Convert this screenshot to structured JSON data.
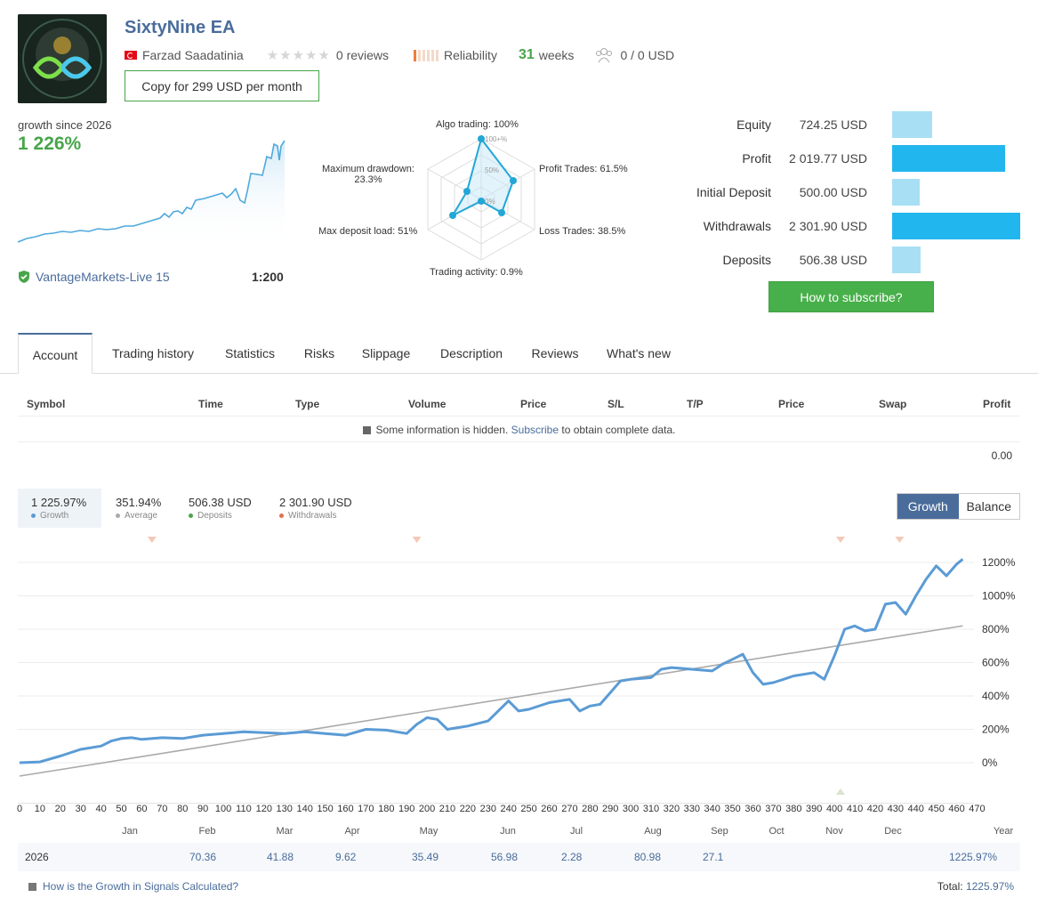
{
  "header": {
    "title": "SixtyNine EA",
    "author": "Farzad Saadatinia",
    "reviews": "0 reviews",
    "reliability_label": "Reliability",
    "weeks_value": "31",
    "weeks_label": "weeks",
    "subscribers": "0 / 0 USD",
    "copy_button": "Copy for 299 USD per month"
  },
  "growth_mini": {
    "since_label": "growth since 2026",
    "value": "1 226%",
    "broker": "VantageMarkets-Live 15",
    "leverage": "1:200"
  },
  "radar": {
    "algo_trading": "Algo trading: 100%",
    "profit_trades": "Profit Trades: 61.5%",
    "loss_trades": "Loss Trades: 38.5%",
    "trading_activity": "Trading activity: 0.9%",
    "max_deposit_load": "Max deposit load: 51%",
    "max_drawdown_line1": "Maximum drawdown:",
    "max_drawdown_line2": "23.3%",
    "ring_100": "100+%",
    "ring_50": "50%",
    "ring_0": "0%",
    "values": {
      "algo_trading": 100,
      "profit_trades": 61.5,
      "loss_trades": 38.5,
      "trading_activity": 0.9,
      "max_deposit_load": 51,
      "max_drawdown": 23.3
    }
  },
  "stats": [
    {
      "label": "Equity",
      "value": "724.25 USD",
      "fraction": 0.31
    },
    {
      "label": "Profit",
      "value": "2 019.77 USD",
      "fraction": 0.88
    },
    {
      "label": "Initial Deposit",
      "value": "500.00 USD",
      "fraction": 0.22
    },
    {
      "label": "Withdrawals",
      "value": "2 301.90 USD",
      "fraction": 1.0
    },
    {
      "label": "Deposits",
      "value": "506.38 USD",
      "fraction": 0.22
    }
  ],
  "subscribe_button": "How to subscribe?",
  "tabs": [
    "Account",
    "Trading history",
    "Statistics",
    "Risks",
    "Slippage",
    "Description",
    "Reviews",
    "What's new"
  ],
  "table": {
    "headers": [
      "Symbol",
      "Time",
      "Type",
      "Volume",
      "Price",
      "S/L",
      "T/P",
      "Price",
      "Swap",
      "Profit"
    ],
    "note_before": "Some information is hidden.",
    "note_link": "Subscribe",
    "note_after": "to obtain complete data.",
    "profit_total": "0.00"
  },
  "summary": [
    {
      "value": "1 225.97%",
      "label": "Growth",
      "color": "#5b9bd5"
    },
    {
      "value": "351.94%",
      "label": "Average",
      "color": "#aaaaaa"
    },
    {
      "value": "506.38 USD",
      "label": "Deposits",
      "color": "#48a54a"
    },
    {
      "value": "2 301.90 USD",
      "label": "Withdrawals",
      "color": "#e07050"
    }
  ],
  "toggle": {
    "growth": "Growth",
    "balance": "Balance"
  },
  "chart_data": {
    "type": "line",
    "x_ticks": [
      0,
      10,
      20,
      30,
      40,
      50,
      60,
      70,
      80,
      90,
      100,
      110,
      120,
      130,
      140,
      150,
      160,
      170,
      180,
      190,
      200,
      210,
      220,
      230,
      240,
      250,
      260,
      270,
      280,
      290,
      300,
      310,
      320,
      330,
      340,
      350,
      360,
      370,
      380,
      390,
      400,
      410,
      420,
      430,
      440,
      450,
      460,
      470
    ],
    "y_ticks": [
      "1200%",
      "1000%",
      "800%",
      "600%",
      "400%",
      "200%",
      "0%"
    ],
    "ylim": [
      -150,
      1300
    ],
    "xlim": [
      0,
      470
    ],
    "months": [
      "Jan",
      "Feb",
      "Mar",
      "Apr",
      "May",
      "Jun",
      "Jul",
      "Aug",
      "Sep",
      "Oct",
      "Nov",
      "Dec",
      "Year"
    ],
    "series": [
      {
        "name": "Growth",
        "color": "#5b9bd5",
        "x": [
          0,
          10,
          20,
          30,
          40,
          45,
          50,
          55,
          60,
          70,
          80,
          90,
          100,
          110,
          120,
          130,
          140,
          150,
          160,
          170,
          180,
          190,
          195,
          200,
          205,
          210,
          220,
          230,
          240,
          245,
          250,
          260,
          270,
          275,
          280,
          285,
          290,
          295,
          300,
          310,
          315,
          320,
          330,
          340,
          345,
          350,
          355,
          360,
          365,
          370,
          375,
          380,
          390,
          395,
          400,
          405,
          410,
          415,
          420,
          425,
          430,
          435,
          440,
          445,
          450,
          455,
          460,
          463
        ],
        "values": [
          0,
          5,
          40,
          80,
          100,
          130,
          145,
          150,
          140,
          150,
          145,
          165,
          175,
          185,
          180,
          175,
          185,
          175,
          165,
          200,
          195,
          175,
          230,
          270,
          260,
          200,
          220,
          250,
          370,
          310,
          320,
          360,
          380,
          310,
          340,
          350,
          420,
          490,
          500,
          510,
          560,
          570,
          560,
          550,
          590,
          620,
          650,
          540,
          470,
          480,
          500,
          520,
          540,
          500,
          640,
          800,
          820,
          790,
          800,
          950,
          960,
          890,
          1000,
          1100,
          1180,
          1120,
          1190,
          1220
        ]
      },
      {
        "name": "Average",
        "color": "#aaaaaa",
        "x": [
          0,
          463
        ],
        "values": [
          -80,
          820
        ]
      }
    ],
    "markers": [
      {
        "x": 65,
        "type": "withdrawal"
      },
      {
        "x": 195,
        "type": "withdrawal"
      },
      {
        "x": 403,
        "type": "withdrawal"
      },
      {
        "x": 432,
        "type": "withdrawal"
      },
      {
        "x": 403,
        "type": "deposit"
      }
    ]
  },
  "yearly": {
    "year": "2026",
    "months": [
      "",
      "70.36",
      "41.88",
      "9.62",
      "35.49",
      "56.98",
      "2.28",
      "80.98",
      "27.1",
      "",
      "",
      "",
      "1225.97%"
    ]
  },
  "footer": {
    "link": "How is the Growth in Signals Calculated?",
    "total_label": "Total:",
    "total_value": "1225.97%"
  },
  "mini_growth_series": [
    0,
    10,
    25,
    45,
    70,
    100,
    150,
    200,
    280,
    380,
    450,
    520,
    650,
    720,
    900,
    1000,
    1226
  ]
}
